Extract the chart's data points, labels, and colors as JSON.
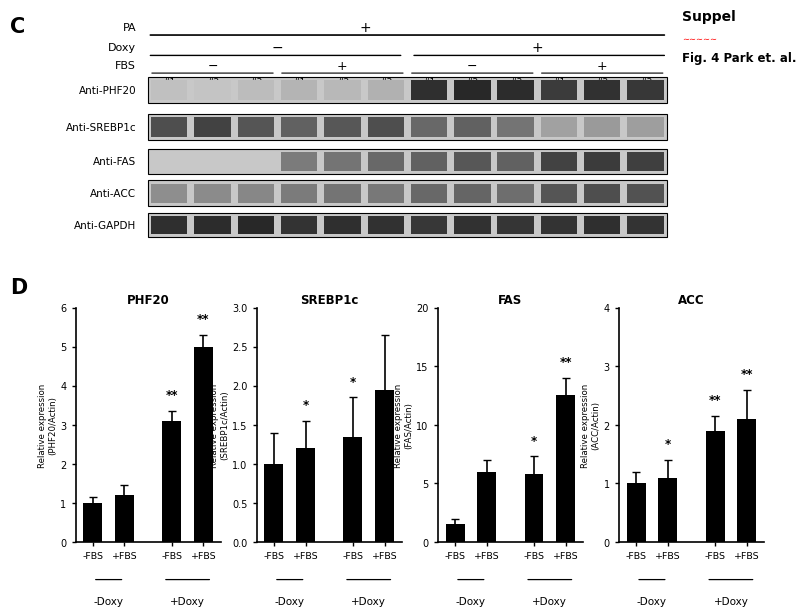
{
  "panel_c_label": "C",
  "panel_d_label": "D",
  "suppel_text": "Suppel",
  "fig_text": "Fig. 4 Park et. al.",
  "antibodies": [
    "Anti-PHF20",
    "Anti-SREBP1c",
    "Anti-FAS",
    "Anti-ACC",
    "Anti-GAPDH"
  ],
  "sample_nums": [
    "#1",
    "#2",
    "#3",
    "#1",
    "#2",
    "#3",
    "#1",
    "#2",
    "#3",
    "#1",
    "#2",
    "#3"
  ],
  "charts": [
    {
      "title": "PHF20",
      "ylabel": "Relative expression\n(PHF20/Actin)",
      "ylim": [
        0,
        6
      ],
      "yticks": [
        0,
        1,
        2,
        3,
        4,
        5,
        6
      ],
      "bars": [
        1.0,
        1.2,
        3.1,
        5.0
      ],
      "errors": [
        0.15,
        0.25,
        0.25,
        0.3
      ],
      "sig": [
        "",
        "",
        "**",
        "**"
      ]
    },
    {
      "title": "SREBP1c",
      "ylabel": "Relative expression\n(SREBP1c/Actin)",
      "ylim": [
        0,
        3.0
      ],
      "yticks": [
        0.0,
        0.5,
        1.0,
        1.5,
        2.0,
        2.5,
        3.0
      ],
      "bars": [
        1.0,
        1.2,
        1.35,
        1.95
      ],
      "errors": [
        0.4,
        0.35,
        0.5,
        0.7
      ],
      "sig": [
        "",
        "*",
        "*",
        ""
      ]
    },
    {
      "title": "FAS",
      "ylabel": "Relative expression\n(FAS/Actin)",
      "ylim": [
        0,
        20
      ],
      "yticks": [
        0,
        5,
        10,
        15,
        20
      ],
      "bars": [
        1.5,
        6.0,
        5.8,
        12.5
      ],
      "errors": [
        0.5,
        1.0,
        1.5,
        1.5
      ],
      "sig": [
        "",
        "",
        "*",
        "**"
      ]
    },
    {
      "title": "ACC",
      "ylabel": "Relative expression\n(ACC/Actin)",
      "ylim": [
        0,
        4
      ],
      "yticks": [
        0,
        1,
        2,
        3,
        4
      ],
      "bars": [
        1.0,
        1.1,
        1.9,
        2.1
      ],
      "errors": [
        0.2,
        0.3,
        0.25,
        0.5
      ],
      "sig": [
        "",
        "*",
        "**",
        "**"
      ]
    }
  ],
  "xticklabels": [
    "-FBS",
    "+FBS",
    "-FBS",
    "+FBS"
  ],
  "group_labels": [
    "-Doxy",
    "+Doxy"
  ],
  "bar_color": "#000000",
  "bar_width": 0.6,
  "bg_color": "#ffffff",
  "phf20_pattern": [
    0.12,
    0.1,
    0.14,
    0.18,
    0.16,
    0.2,
    0.88,
    0.92,
    0.9,
    0.82,
    0.87,
    0.84
  ],
  "srebp1c_pattern": [
    0.72,
    0.78,
    0.68,
    0.62,
    0.67,
    0.72,
    0.58,
    0.62,
    0.52,
    0.28,
    0.32,
    0.3
  ],
  "fas_pattern": [
    0.0,
    0.0,
    0.0,
    0.48,
    0.52,
    0.58,
    0.62,
    0.67,
    0.62,
    0.78,
    0.82,
    0.8
  ],
  "acc_pattern": [
    0.38,
    0.4,
    0.42,
    0.48,
    0.52,
    0.5,
    0.58,
    0.6,
    0.55,
    0.68,
    0.72,
    0.7
  ],
  "gapdh_pattern": [
    0.88,
    0.9,
    0.92,
    0.86,
    0.88,
    0.87,
    0.84,
    0.87,
    0.85,
    0.86,
    0.88,
    0.86
  ]
}
